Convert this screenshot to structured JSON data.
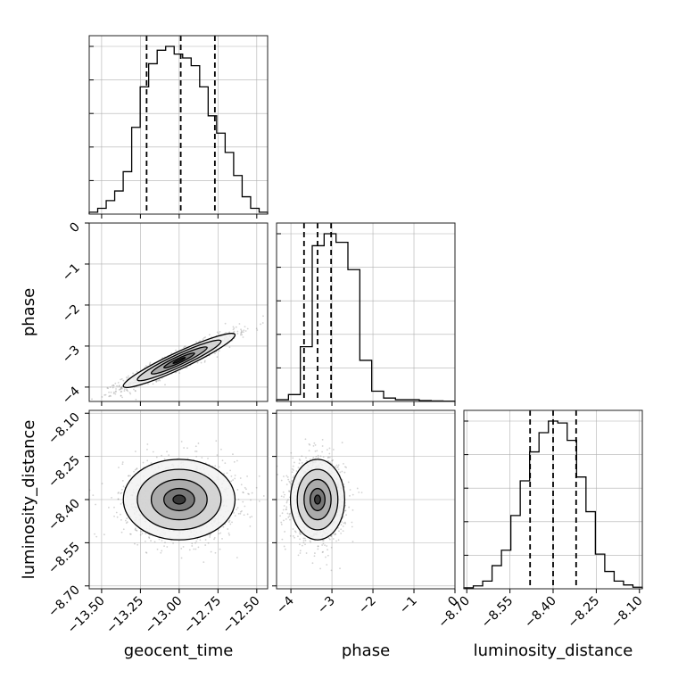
{
  "chart_data": {
    "type": "corner",
    "parameters": [
      {
        "name": "geocent_time",
        "range": [
          -13.58,
          -12.43
        ],
        "ticks": [
          -13.5,
          -13.25,
          -13.0,
          -12.75,
          -12.5
        ],
        "tick_labels": [
          "−13.50",
          "−13.25",
          "−13.00",
          "−12.75",
          "−12.50"
        ],
        "quantiles": [
          -13.21,
          -12.99,
          -12.77
        ],
        "histogram_counts": [
          1,
          3,
          7,
          12,
          22,
          45,
          66,
          78,
          85,
          87,
          83,
          81,
          77,
          66,
          51,
          42,
          32,
          20,
          9,
          3,
          1
        ]
      },
      {
        "name": "phase",
        "range": [
          -4.35,
          0
        ],
        "ticks": [
          -4,
          -3,
          -2,
          -1,
          0
        ],
        "tick_labels": [
          "−4",
          "−3",
          "−2",
          "−1",
          "0"
        ],
        "quantiles": [
          -3.68,
          -3.35,
          -3.02
        ],
        "histogram_counts": [
          1,
          4,
          32,
          91,
          98,
          93,
          77,
          24,
          6,
          2,
          1,
          1,
          0.5,
          0.3,
          0.2
        ]
      },
      {
        "name": "luminosity_distance",
        "range": [
          -8.71,
          -8.09
        ],
        "ticks": [
          -8.7,
          -8.55,
          -8.4,
          -8.25,
          -8.1
        ],
        "tick_labels": [
          "−8.70",
          "−8.55",
          "−8.40",
          "−8.25",
          "−8.10"
        ],
        "quantiles": [
          -8.48,
          -8.4,
          -8.32
        ],
        "histogram_counts": [
          0.5,
          1.5,
          4,
          12,
          20,
          38,
          56,
          71,
          81,
          87,
          86,
          77,
          58,
          40,
          18,
          9,
          4,
          2,
          0.8
        ]
      }
    ],
    "scatter_panels": [
      {
        "x": "geocent_time",
        "y": "phase",
        "mean": [
          -13.0,
          -3.35
        ],
        "sd": [
          0.18,
          0.33
        ],
        "corr": 0.94,
        "yticks": [
          0,
          -1,
          -2,
          -3,
          -4
        ],
        "ytick_labels": [
          "0",
          "−1",
          "−2",
          "−3",
          "−4"
        ]
      },
      {
        "x": "geocent_time",
        "y": "luminosity_distance",
        "mean": [
          -13.0,
          -8.4
        ],
        "sd": [
          0.18,
          0.07
        ],
        "corr": 0.0,
        "yticks": [
          -8.1,
          -8.25,
          -8.4,
          -8.55,
          -8.7
        ],
        "ytick_labels": [
          "−8.10",
          "−8.25",
          "−8.40",
          "−8.55",
          "−8.70"
        ]
      },
      {
        "x": "phase",
        "y": "luminosity_distance",
        "mean": [
          -3.35,
          -8.4
        ],
        "sd": [
          0.33,
          0.07
        ],
        "corr": 0.0
      }
    ],
    "grid": true,
    "line_color": "#000000",
    "scatter_color": "#7f7f7f"
  }
}
